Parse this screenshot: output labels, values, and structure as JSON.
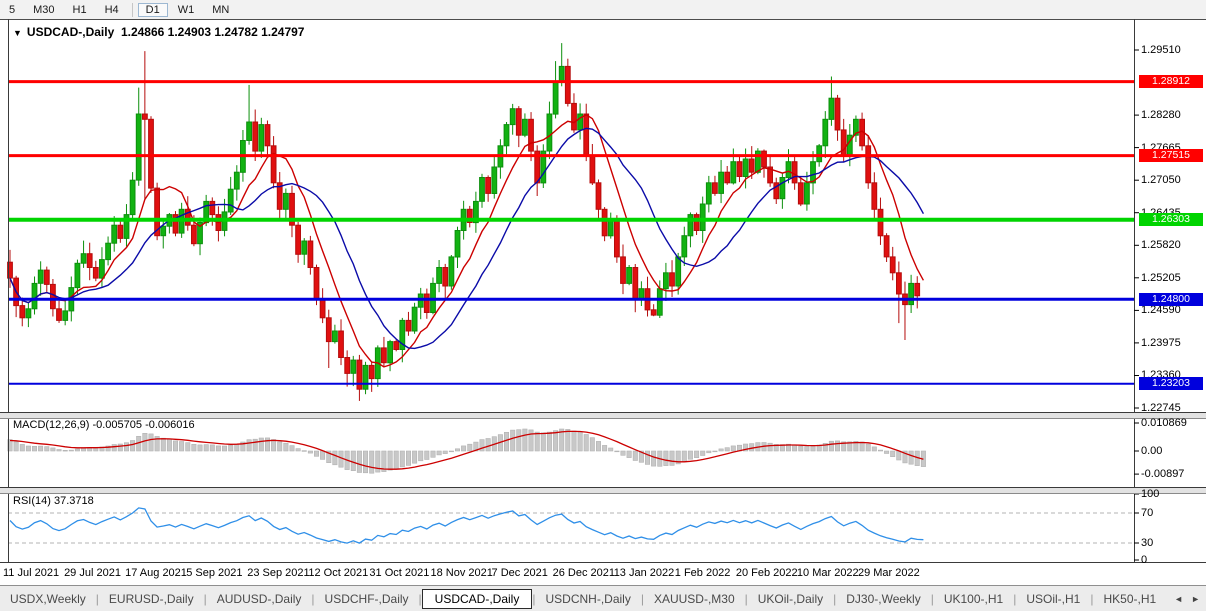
{
  "toolbar": {
    "timeframes": [
      {
        "label": "5",
        "active": false
      },
      {
        "label": "M30",
        "active": false
      },
      {
        "label": "H1",
        "active": false
      },
      {
        "label": "H4",
        "active": false
      },
      {
        "label": "D1",
        "active": true
      },
      {
        "label": "W1",
        "active": false
      },
      {
        "label": "MN",
        "active": false
      }
    ]
  },
  "chart": {
    "title": {
      "dropdown_icon": "▼",
      "symbol": "USDCAD-,Daily",
      "ohlc": "1.24866 1.24903 1.24782 1.24797"
    }
  },
  "chart_data": {
    "type": "candlestick",
    "symbol": "USDCAD",
    "timeframe": "Daily",
    "last_bar": {
      "open": 1.24866,
      "high": 1.24903,
      "low": 1.24782,
      "close": 1.24797
    },
    "closes": [
      1.252,
      1.2468,
      1.2445,
      1.2462,
      1.251,
      1.2535,
      1.2508,
      1.2462,
      1.244,
      1.2458,
      1.2502,
      1.2548,
      1.2566,
      1.254,
      1.252,
      1.2555,
      1.2586,
      1.262,
      1.2595,
      1.264,
      1.2705,
      1.283,
      1.282,
      1.269,
      1.26,
      1.2618,
      1.264,
      1.2605,
      1.265,
      1.262,
      1.2585,
      1.2625,
      1.2665,
      1.264,
      1.261,
      1.2645,
      1.2688,
      1.272,
      1.278,
      1.2815,
      1.276,
      1.281,
      1.277,
      1.27,
      1.265,
      1.268,
      1.262,
      1.2565,
      1.259,
      1.254,
      1.248,
      1.2445,
      1.24,
      1.242,
      1.237,
      1.234,
      1.2365,
      1.231,
      1.2355,
      1.233,
      1.2388,
      1.236,
      1.24,
      1.2385,
      1.244,
      1.242,
      1.2465,
      1.249,
      1.2455,
      1.251,
      1.254,
      1.2505,
      1.256,
      1.261,
      1.265,
      1.2625,
      1.2665,
      1.271,
      1.268,
      1.273,
      1.277,
      1.281,
      1.284,
      1.279,
      1.282,
      1.276,
      1.27,
      1.276,
      1.283,
      1.289,
      1.292,
      1.285,
      1.28,
      1.283,
      1.275,
      1.27,
      1.265,
      1.26,
      1.263,
      1.256,
      1.251,
      1.254,
      1.248,
      1.25,
      1.246,
      1.245,
      1.25,
      1.253,
      1.2505,
      1.256,
      1.26,
      1.264,
      1.261,
      1.266,
      1.27,
      1.268,
      1.272,
      1.27,
      1.274,
      1.2712,
      1.2745,
      1.272,
      1.276,
      1.273,
      1.27,
      1.267,
      1.271,
      1.274,
      1.27,
      1.266,
      1.27,
      1.274,
      1.277,
      1.282,
      1.286,
      1.28,
      1.275,
      1.279,
      1.282,
      1.277,
      1.27,
      1.265,
      1.26,
      1.256,
      1.253,
      1.249,
      1.247,
      1.251,
      1.24866,
      1.24797
    ],
    "wick_overrides": {
      "21": {
        "h": 1.288
      },
      "22": {
        "h": 1.2949,
        "l": 1.2669
      },
      "39": {
        "h": 1.2885
      },
      "52": {
        "l": 1.235
      },
      "55": {
        "l": 1.2315
      },
      "57": {
        "l": 1.2288
      },
      "59": {
        "l": 1.2305
      },
      "89": {
        "h": 1.293
      },
      "90": {
        "h": 1.2964
      },
      "105": {
        "l": 1.2448
      },
      "134": {
        "h": 1.2901
      },
      "145": {
        "l": 1.2435
      },
      "146": {
        "l": 1.2403
      }
    },
    "moving_averages": [
      {
        "name": "fast-ma",
        "period": 8,
        "color": "#cc0000"
      },
      {
        "name": "slow-ma",
        "period": 16,
        "color": "#0b0ba8"
      }
    ],
    "horizontal_lines": [
      {
        "price": 1.28912,
        "label": "1.28912",
        "color": "#ff0000",
        "width": 3
      },
      {
        "price": 1.27515,
        "label": "1.27515",
        "color": "#ff0000",
        "width": 3
      },
      {
        "price": 1.26303,
        "label": "1.26303",
        "color": "#00d400",
        "width": 4
      },
      {
        "price": 1.248,
        "label": "1.24800",
        "color": "#0000dd",
        "width": 3
      },
      {
        "price": 1.23203,
        "label": "1.23203",
        "color": "#0000dd",
        "width": 2
      }
    ],
    "y_axis_ticks": [
      "1.29510",
      "1.28280",
      "1.27665",
      "1.27050",
      "1.26435",
      "1.25820",
      "1.25205",
      "1.24590",
      "1.23975",
      "1.23360",
      "1.22745"
    ],
    "x_axis_labels": [
      "11 Jul 2021",
      "29 Jul 2021",
      "17 Aug 2021",
      "5 Sep 2021",
      "23 Sep 2021",
      "12 Oct 2021",
      "31 Oct 2021",
      "18 Nov 2021",
      "7 Dec 2021",
      "26 Dec 2021",
      "13 Jan 2022",
      "1 Feb 2022",
      "20 Feb 2022",
      "10 Mar 2022",
      "29 Mar 2022"
    ],
    "macd": {
      "label": "MACD(12,26,9) -0.005705 -0.006016",
      "params": [
        12,
        26,
        9
      ],
      "value": -0.005705,
      "signal_value": -0.006016,
      "axis": [
        {
          "label": "0.010869",
          "v": 0.010869
        },
        {
          "label": "0.00",
          "v": 0
        },
        {
          "label": "-0.00897",
          "v": -0.00897
        }
      ]
    },
    "rsi": {
      "label": "RSI(14) 37.3718",
      "period": 14,
      "value": 37.3718,
      "levels": [
        70,
        30
      ],
      "axis": [
        {
          "label": "100",
          "v": 100
        },
        {
          "label": "70",
          "v": 70
        },
        {
          "label": "30",
          "v": 30
        },
        {
          "label": "0",
          "v": 0
        }
      ]
    }
  },
  "colors": {
    "bull_fill": "#12b212",
    "bull_border": "#0c8f0c",
    "bear_fill": "#e01010",
    "bear_border": "#b50c0c",
    "ma_fast": "#cc0000",
    "ma_slow": "#0b0ba8",
    "macd_hist": "#c8c8c8",
    "macd_hist_border": "#b2b2b2",
    "macd_signal": "#cc0000",
    "rsi_line": "#2f8fe8",
    "level_dash": "#b3b3b3",
    "axis_line": "#3a3a3a"
  },
  "tabs": {
    "items": [
      {
        "label": "USDX,Weekly",
        "active": false
      },
      {
        "label": "EURUSD-,Daily",
        "active": false
      },
      {
        "label": "AUDUSD-,Daily",
        "active": false
      },
      {
        "label": "USDCHF-,Daily",
        "active": false
      },
      {
        "label": "USDCAD-,Daily",
        "active": true
      },
      {
        "label": "USDCNH-,Daily",
        "active": false
      },
      {
        "label": "XAUUSD-,M30",
        "active": false
      },
      {
        "label": "UKOil-,Daily",
        "active": false
      },
      {
        "label": "DJ30-,Weekly",
        "active": false
      },
      {
        "label": "UK100-,H1",
        "active": false
      },
      {
        "label": "USOil-,H1",
        "active": false
      },
      {
        "label": "HK50-,H1",
        "active": false
      }
    ],
    "scroll_left_icon": "◄",
    "scroll_right_icon": "►"
  }
}
